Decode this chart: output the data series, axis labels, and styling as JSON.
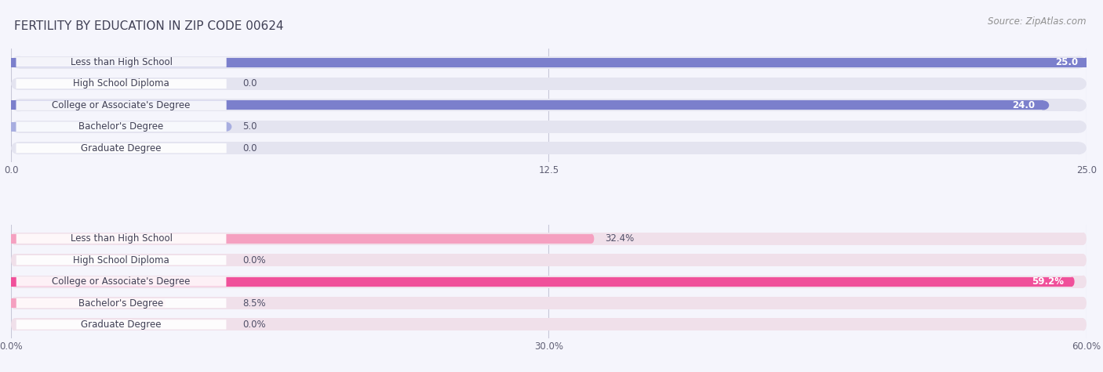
{
  "title": "Fertility by Education in Zip Code 00624",
  "title_display": "FERTILITY BY EDUCATION IN ZIP CODE 00624",
  "source": "Source: ZipAtlas.com",
  "top_chart": {
    "categories": [
      "Less than High School",
      "High School Diploma",
      "College or Associate's Degree",
      "Bachelor's Degree",
      "Graduate Degree"
    ],
    "values": [
      25.0,
      0.0,
      24.0,
      5.0,
      0.0
    ],
    "xlim": [
      0,
      25.0
    ],
    "xticks": [
      0.0,
      12.5,
      25.0
    ],
    "xtick_labels": [
      "0.0",
      "12.5",
      "25.0"
    ],
    "bar_color_full": "#7b7fcc",
    "bar_color_light": "#a8aee0",
    "bar_bg_color": "#e4e4f0",
    "value_labels": [
      "25.0",
      "0.0",
      "24.0",
      "5.0",
      "0.0"
    ],
    "value_inside": [
      true,
      false,
      true,
      false,
      false
    ]
  },
  "bottom_chart": {
    "categories": [
      "Less than High School",
      "High School Diploma",
      "College or Associate's Degree",
      "Bachelor's Degree",
      "Graduate Degree"
    ],
    "values": [
      32.4,
      0.0,
      59.2,
      8.5,
      0.0
    ],
    "xlim": [
      0,
      60.0
    ],
    "xticks": [
      0.0,
      30.0,
      60.0
    ],
    "xtick_labels": [
      "0.0%",
      "30.0%",
      "60.0%"
    ],
    "bar_color_full": "#f0509a",
    "bar_color_light": "#f5a0c0",
    "bar_bg_color": "#f0e0ea",
    "value_labels": [
      "32.4%",
      "0.0%",
      "59.2%",
      "8.5%",
      "0.0%"
    ],
    "value_inside": [
      false,
      false,
      true,
      false,
      false
    ]
  },
  "bg_color": "#f5f5fc",
  "label_font_size": 8.5,
  "value_font_size": 8.5,
  "title_font_size": 11,
  "source_font_size": 8.5
}
